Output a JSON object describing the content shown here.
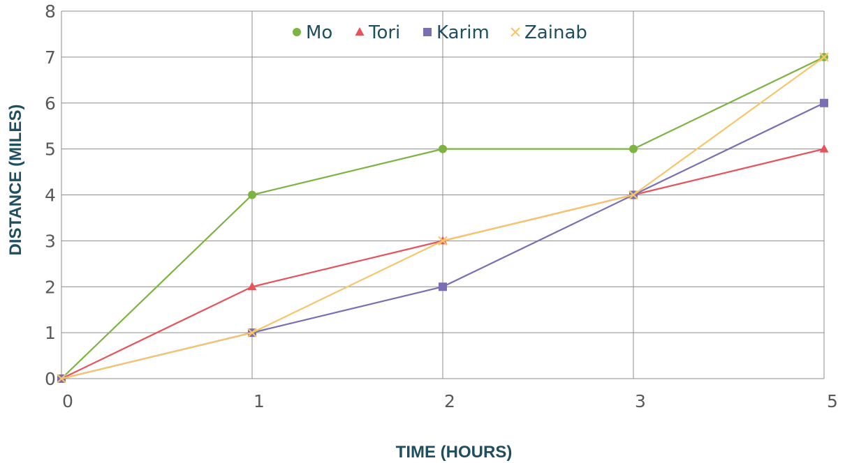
{
  "chart_data": {
    "type": "line",
    "x_tick_labels": [
      "0",
      "1",
      "2",
      "3",
      "5"
    ],
    "xlabel": "TIME (HOURS)",
    "ylabel": "DISTANCE (MILES)",
    "ylim": [
      0,
      8
    ],
    "y_ticks": [
      0,
      1,
      2,
      3,
      4,
      5,
      6,
      7,
      8
    ],
    "grid": true,
    "legend_position": "top",
    "series": [
      {
        "name": "Mo",
        "values": [
          0,
          4,
          5,
          5,
          7
        ],
        "color": "#7cb342",
        "marker": "circle"
      },
      {
        "name": "Tori",
        "values": [
          0,
          2,
          3,
          4,
          5
        ],
        "color": "#e8525a",
        "marker": "triangle"
      },
      {
        "name": "Karim",
        "values": [
          0,
          1,
          2,
          4,
          6
        ],
        "color": "#7b6eb3",
        "marker": "square"
      },
      {
        "name": "Zainab",
        "values": [
          0,
          1,
          3,
          4,
          7
        ],
        "color": "#f7c56a",
        "marker": "x"
      }
    ]
  }
}
